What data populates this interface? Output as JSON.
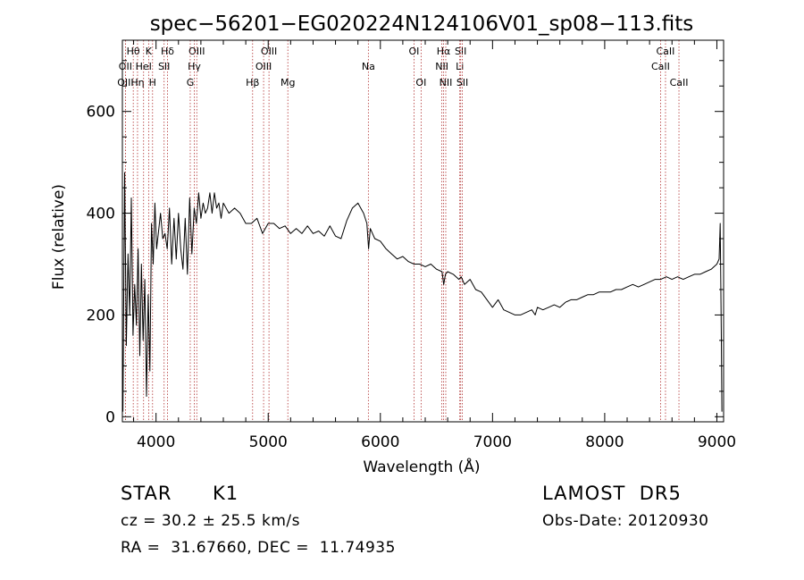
{
  "chart_data": {
    "type": "line",
    "title": "spec−56201−EG020224N124106V01_sp08−113.fits",
    "xlabel": "Wavelength (Å)",
    "ylabel": "Flux (relative)",
    "xlim": [
      3700,
      9060
    ],
    "ylim": [
      -10,
      740
    ],
    "xticks": [
      4000,
      5000,
      6000,
      7000,
      8000,
      9000
    ],
    "yticks": [
      0,
      200,
      400,
      600
    ],
    "grid": false,
    "legend": "none",
    "line_color": "#000000",
    "marker_color": "#b03030",
    "series": [
      {
        "x": [
          3705,
          3720,
          3735,
          3750,
          3765,
          3780,
          3795,
          3810,
          3825,
          3840,
          3855,
          3870,
          3885,
          3900,
          3915,
          3930,
          3945,
          3960,
          3975,
          3990,
          4005,
          4020,
          4040,
          4060,
          4080,
          4100,
          4120,
          4140,
          4160,
          4180,
          4200,
          4220,
          4240,
          4260,
          4280,
          4300,
          4320,
          4340,
          4360,
          4380,
          4400,
          4420,
          4440,
          4460,
          4480,
          4500,
          4520,
          4540,
          4560,
          4580,
          4600,
          4650,
          4700,
          4750,
          4800,
          4850,
          4900,
          4950,
          5000,
          5050,
          5100,
          5150,
          5200,
          5250,
          5300,
          5350,
          5400,
          5450,
          5500,
          5550,
          5600,
          5650,
          5700,
          5750,
          5800,
          5850,
          5880,
          5895,
          5910,
          5930,
          5950,
          6000,
          6050,
          6100,
          6150,
          6200,
          6250,
          6300,
          6350,
          6400,
          6450,
          6500,
          6550,
          6565,
          6580,
          6600,
          6650,
          6700,
          6720,
          6750,
          6800,
          6850,
          6900,
          6950,
          7000,
          7050,
          7100,
          7150,
          7200,
          7250,
          7300,
          7350,
          7380,
          7400,
          7450,
          7500,
          7550,
          7600,
          7650,
          7700,
          7750,
          7800,
          7850,
          7900,
          7950,
          8000,
          8050,
          8100,
          8150,
          8200,
          8250,
          8300,
          8350,
          8400,
          8450,
          8500,
          8550,
          8600,
          8650,
          8700,
          8750,
          8800,
          8850,
          8900,
          8950,
          9000,
          9020,
          9030,
          9040,
          9045
        ],
        "y": [
          10,
          480,
          140,
          320,
          200,
          430,
          160,
          260,
          180,
          330,
          120,
          300,
          150,
          270,
          40,
          240,
          90,
          380,
          300,
          420,
          330,
          360,
          400,
          350,
          360,
          330,
          410,
          300,
          390,
          310,
          400,
          330,
          290,
          390,
          280,
          430,
          320,
          410,
          380,
          440,
          390,
          420,
          400,
          410,
          440,
          400,
          440,
          410,
          420,
          390,
          420,
          400,
          410,
          400,
          380,
          380,
          390,
          360,
          380,
          380,
          370,
          375,
          360,
          370,
          360,
          375,
          360,
          365,
          355,
          375,
          355,
          350,
          385,
          410,
          420,
          400,
          380,
          330,
          370,
          360,
          350,
          345,
          330,
          320,
          310,
          315,
          305,
          300,
          300,
          295,
          300,
          290,
          285,
          260,
          280,
          285,
          280,
          270,
          275,
          260,
          270,
          250,
          245,
          230,
          215,
          230,
          210,
          205,
          200,
          200,
          205,
          210,
          200,
          215,
          210,
          215,
          220,
          215,
          225,
          230,
          230,
          235,
          240,
          240,
          245,
          245,
          245,
          250,
          250,
          255,
          260,
          255,
          260,
          265,
          270,
          270,
          275,
          270,
          275,
          270,
          275,
          280,
          280,
          285,
          290,
          300,
          310,
          380,
          150,
          10
        ]
      }
    ],
    "lines": [
      {
        "name": "Hθ",
        "x": 3797,
        "row": 0
      },
      {
        "name": "OII",
        "x": 3727,
        "row": 1
      },
      {
        "name": "OIII",
        "x": 3727,
        "row": 2
      },
      {
        "name": "Hη",
        "x": 3835,
        "row": 2
      },
      {
        "name": "K",
        "x": 3934,
        "row": 0
      },
      {
        "name": "HeI",
        "x": 3889,
        "row": 1
      },
      {
        "name": "H",
        "x": 3969,
        "row": 2
      },
      {
        "name": "Hδ",
        "x": 4102,
        "row": 0
      },
      {
        "name": "SII",
        "x": 4072,
        "row": 1
      },
      {
        "name": "OIII",
        "x": 4363,
        "row": 0
      },
      {
        "name": "Hγ",
        "x": 4341,
        "row": 1
      },
      {
        "name": "G",
        "x": 4305,
        "row": 2
      },
      {
        "name": "OIII",
        "x": 5007,
        "row": 0
      },
      {
        "name": "OIII",
        "x": 4959,
        "row": 1
      },
      {
        "name": "Hβ",
        "x": 4861,
        "row": 2
      },
      {
        "name": "Mg",
        "x": 5175,
        "row": 2
      },
      {
        "name": "Na",
        "x": 5893,
        "row": 1
      },
      {
        "name": "OI",
        "x": 6300,
        "row": 0
      },
      {
        "name": "OI",
        "x": 6363,
        "row": 2
      },
      {
        "name": "Hα",
        "x": 6563,
        "row": 0
      },
      {
        "name": "NII",
        "x": 6548,
        "row": 1
      },
      {
        "name": "NII",
        "x": 6583,
        "row": 2
      },
      {
        "name": "SII",
        "x": 6716,
        "row": 0
      },
      {
        "name": "Li",
        "x": 6708,
        "row": 1
      },
      {
        "name": "SII",
        "x": 6731,
        "row": 2
      },
      {
        "name": "CaII",
        "x": 8542,
        "row": 0
      },
      {
        "name": "CaII",
        "x": 8498,
        "row": 1
      },
      {
        "name": "CaII",
        "x": 8662,
        "row": 2
      }
    ]
  },
  "info": {
    "class": "STAR",
    "subclass": "K1",
    "survey": "LAMOST  DR5",
    "redshift": "cz = 30.2 ± 25.5 km/s",
    "obsdate": "Obs-Date: 20120930",
    "coords": "RA =  31.67660, DEC =  11.74935"
  }
}
